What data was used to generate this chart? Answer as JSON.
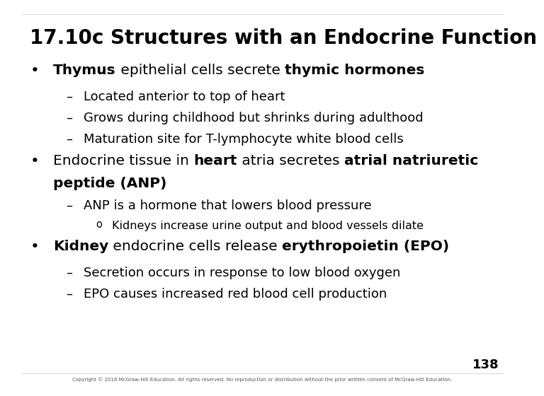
{
  "title": "17.10c Structures with an Endocrine Function",
  "background_color": "#ffffff",
  "text_color": "#000000",
  "title_fontsize": 20,
  "body_fontsize": 14.5,
  "sub_fontsize": 13,
  "subsub_fontsize": 11.5,
  "page_number": "138",
  "copyright": "Copyright © 2016 McGraw-Hill Education. All rights reserved. No reproduction or distribution without the prior written consent of McGraw-Hill Education.",
  "bullet1_line1": [
    {
      "text": "Thymus",
      "bold": true
    },
    {
      "text": " epithelial cells secrete ",
      "bold": false
    },
    {
      "text": "thymic hormones",
      "bold": true
    }
  ],
  "bullet1_subs": [
    "Located anterior to top of heart",
    "Grows during childhood but shrinks during adulthood",
    "Maturation site for T-lymphocyte white blood cells"
  ],
  "bullet2_line1": [
    {
      "text": "Endocrine tissue in ",
      "bold": false
    },
    {
      "text": "heart",
      "bold": true
    },
    {
      "text": " atria secretes ",
      "bold": false
    },
    {
      "text": "atrial natriuretic",
      "bold": true
    }
  ],
  "bullet2_line2": [
    {
      "text": "peptide (ANP)",
      "bold": true
    }
  ],
  "bullet2_subs": [
    "ANP is a hormone that lowers blood pressure"
  ],
  "bullet2_subsubs": [
    "Kidneys increase urine output and blood vessels dilate"
  ],
  "bullet3_line1": [
    {
      "text": "Kidney",
      "bold": true
    },
    {
      "text": " endocrine cells release ",
      "bold": false
    },
    {
      "text": "erythropoietin (EPO)",
      "bold": true
    }
  ],
  "bullet3_subs": [
    "Secretion occurs in response to low blood oxygen",
    "EPO causes increased red blood cell production"
  ]
}
